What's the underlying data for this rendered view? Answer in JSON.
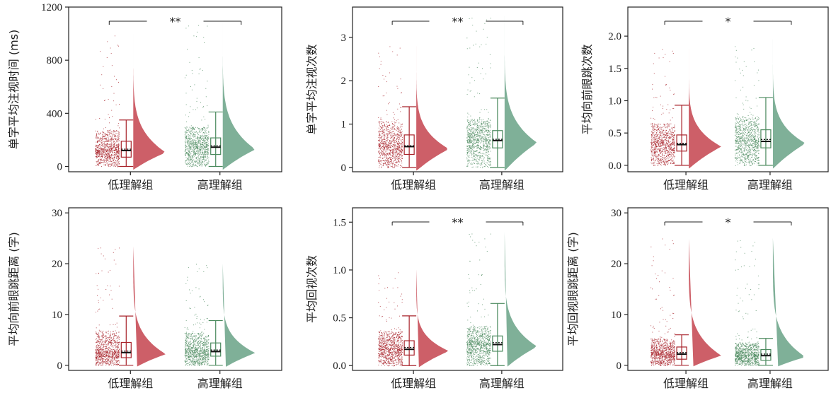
{
  "colors": {
    "low": "#a8232b",
    "low_fill": "#cd5f68",
    "high": "#4b8a5e",
    "high_fill": "#7fb098",
    "axis": "#222222"
  },
  "chart_data": [
    {
      "type": "raincloud",
      "ylabel": "单字平均注视时间 (ms)",
      "categories": [
        "低理解组",
        "高理解组"
      ],
      "ylim": [
        -40,
        1200
      ],
      "yticks": [
        0,
        400,
        800,
        1200
      ],
      "significance": "**",
      "series": [
        {
          "name": "低理解组",
          "box": {
            "whisker_low": 0,
            "q1": 70,
            "median": 120,
            "mean": 130,
            "q3": 190,
            "whisker_high": 350
          },
          "max": 1000
        },
        {
          "name": "高理解组",
          "box": {
            "whisker_low": 0,
            "q1": 90,
            "median": 145,
            "mean": 155,
            "q3": 215,
            "whisker_high": 410
          },
          "max": 1100
        }
      ]
    },
    {
      "type": "raincloud",
      "ylabel": "单字平均注视次数",
      "categories": [
        "低理解组",
        "高理解组"
      ],
      "ylim": [
        -0.1,
        3.7
      ],
      "yticks": [
        0,
        1,
        2,
        3
      ],
      "significance": "**",
      "series": [
        {
          "name": "低理解组",
          "box": {
            "whisker_low": 0,
            "q1": 0.3,
            "median": 0.48,
            "mean": 0.5,
            "q3": 0.75,
            "whisker_high": 1.4
          },
          "max": 2.8
        },
        {
          "name": "高理解组",
          "box": {
            "whisker_low": 0,
            "q1": 0.45,
            "median": 0.62,
            "mean": 0.65,
            "q3": 0.85,
            "whisker_high": 1.6
          },
          "max": 3.5
        }
      ]
    },
    {
      "type": "raincloud",
      "ylabel": "平均向前眼跳次数",
      "categories": [
        "低理解组",
        "高理解组"
      ],
      "ylim": [
        -0.1,
        2.45
      ],
      "yticks": [
        0.0,
        0.5,
        1.0,
        1.5,
        2.0
      ],
      "significance": "*",
      "series": [
        {
          "name": "低理解组",
          "box": {
            "whisker_low": 0,
            "q1": 0.22,
            "median": 0.32,
            "mean": 0.34,
            "q3": 0.47,
            "whisker_high": 0.93
          },
          "max": 1.8
        },
        {
          "name": "高理解组",
          "box": {
            "whisker_low": 0,
            "q1": 0.27,
            "median": 0.37,
            "mean": 0.4,
            "q3": 0.55,
            "whisker_high": 1.05
          },
          "max": 1.95
        }
      ]
    },
    {
      "type": "raincloud",
      "ylabel": "平均向前眼跳距离 (字)",
      "categories": [
        "低理解组",
        "高理解组"
      ],
      "ylim": [
        -1,
        31
      ],
      "yticks": [
        0,
        10,
        20,
        30
      ],
      "significance": "",
      "series": [
        {
          "name": "低理解组",
          "box": {
            "whisker_low": 0,
            "q1": 1.5,
            "median": 2.5,
            "mean": 2.8,
            "q3": 4.5,
            "whisker_high": 9.7
          },
          "max": 23.5
        },
        {
          "name": "高理解组",
          "box": {
            "whisker_low": 0,
            "q1": 1.8,
            "median": 2.7,
            "mean": 3.0,
            "q3": 4.4,
            "whisker_high": 8.8
          },
          "max": 20
        }
      ]
    },
    {
      "type": "raincloud",
      "ylabel": "平均回视次数",
      "categories": [
        "低理解组",
        "高理解组"
      ],
      "ylim": [
        -0.05,
        1.65
      ],
      "yticks": [
        0.0,
        0.5,
        1.0,
        1.5
      ],
      "significance": "**",
      "series": [
        {
          "name": "低理解组",
          "box": {
            "whisker_low": 0,
            "q1": 0.11,
            "median": 0.17,
            "mean": 0.19,
            "q3": 0.26,
            "whisker_high": 0.52
          },
          "max": 1.0
        },
        {
          "name": "高理解组",
          "box": {
            "whisker_low": 0,
            "q1": 0.15,
            "median": 0.22,
            "mean": 0.24,
            "q3": 0.31,
            "whisker_high": 0.65
          },
          "max": 1.4
        }
      ]
    },
    {
      "type": "raincloud",
      "ylabel": "平均回视眼跳距离 (字)",
      "categories": [
        "低理解组",
        "高理解组"
      ],
      "ylim": [
        -1,
        31
      ],
      "yticks": [
        0,
        10,
        20,
        30
      ],
      "significance": "*",
      "series": [
        {
          "name": "低理解组",
          "box": {
            "whisker_low": 0,
            "q1": 1.2,
            "median": 2.2,
            "mean": 2.5,
            "q3": 3.6,
            "whisker_high": 6
          },
          "max": 25
        },
        {
          "name": "高理解组",
          "box": {
            "whisker_low": 0,
            "q1": 1.0,
            "median": 1.9,
            "mean": 2.2,
            "q3": 3.1,
            "whisker_high": 5.3
          },
          "max": 25
        }
      ]
    }
  ]
}
